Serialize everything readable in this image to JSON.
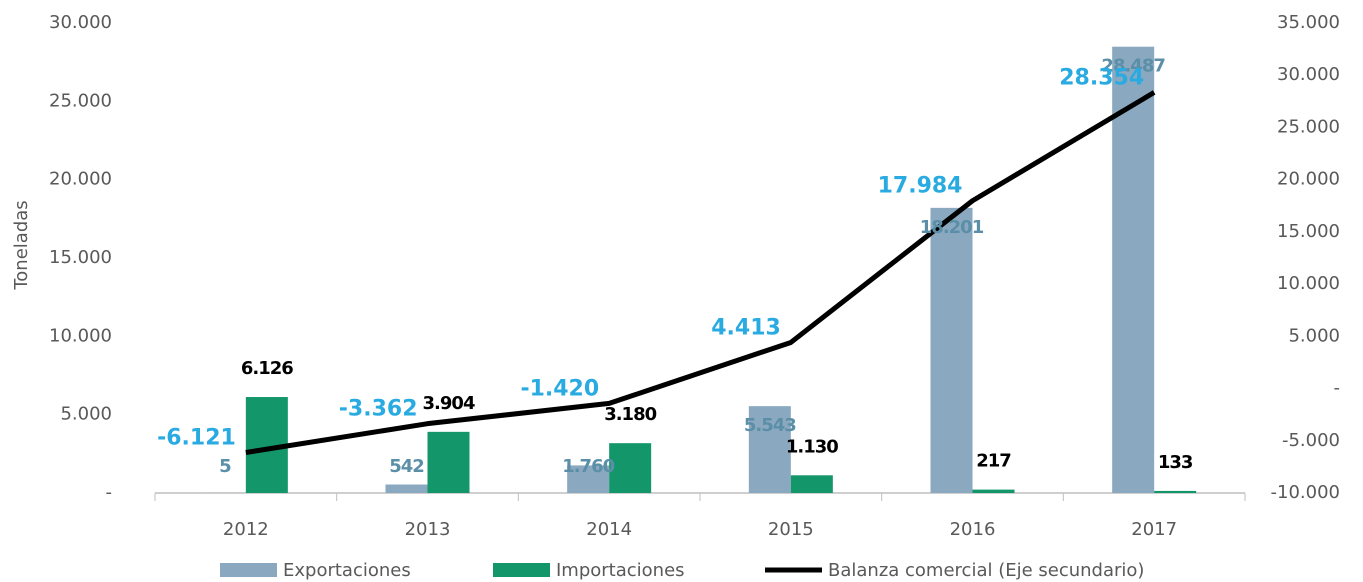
{
  "chart_data": {
    "type": "bar",
    "ylabel": "Toneladas",
    "categories": [
      "2012",
      "2013",
      "2014",
      "2015",
      "2016",
      "2017"
    ],
    "series": [
      {
        "name": "Exportaciones",
        "color": "#8aa8bf",
        "values": [
          5,
          542,
          1760,
          5543,
          18201,
          28487
        ],
        "value_labels": [
          "5",
          "542",
          "1.760",
          "5.543",
          "18.201",
          "28.487"
        ],
        "label_color": "#5b8fa8"
      },
      {
        "name": "Importaciones",
        "color": "#14966b",
        "values": [
          6126,
          3904,
          3180,
          1130,
          217,
          133
        ],
        "value_labels": [
          "6.126",
          "3.904",
          "3.180",
          "1.130",
          "217",
          "133"
        ],
        "label_color": "#000000"
      },
      {
        "name": "Balanza comercial (Eje secundario)",
        "type": "line",
        "axis": "y2",
        "color": "#000000",
        "values": [
          -6121,
          -3362,
          -1420,
          4413,
          17984,
          28354
        ],
        "value_labels": [
          "-6.121",
          "-3.362",
          "-1.420",
          "4.413",
          "17.984",
          "28.354"
        ],
        "label_color": "#29abe2"
      }
    ],
    "ylim": [
      0,
      30000
    ],
    "yticks": [
      {
        "value": 0,
        "label": "-"
      },
      {
        "value": 5000,
        "label": "5.000"
      },
      {
        "value": 10000,
        "label": "10.000"
      },
      {
        "value": 15000,
        "label": "15.000"
      },
      {
        "value": 20000,
        "label": "20.000"
      },
      {
        "value": 25000,
        "label": "25.000"
      },
      {
        "value": 30000,
        "label": "30.000"
      }
    ],
    "y2lim": [
      -10000,
      35000
    ],
    "y2ticks": [
      {
        "value": -10000,
        "label": "-10.000"
      },
      {
        "value": -5000,
        "label": "-5.000"
      },
      {
        "value": 0,
        "label": "-"
      },
      {
        "value": 5000,
        "label": "5.000"
      },
      {
        "value": 10000,
        "label": "10.000"
      },
      {
        "value": 15000,
        "label": "15.000"
      },
      {
        "value": 20000,
        "label": "20.000"
      },
      {
        "value": 25000,
        "label": "25.000"
      },
      {
        "value": 30000,
        "label": "30.000"
      },
      {
        "value": 35000,
        "label": "35.000"
      }
    ],
    "legend": "bottom"
  }
}
